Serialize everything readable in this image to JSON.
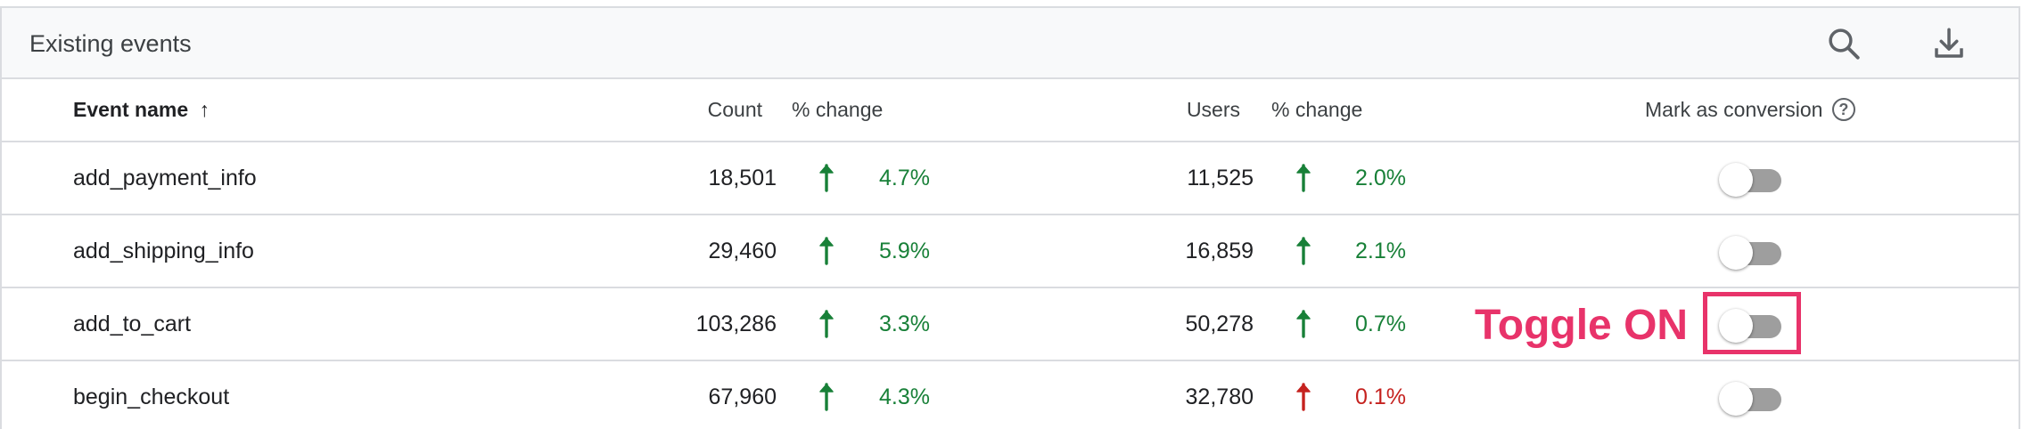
{
  "card": {
    "title": "Existing events"
  },
  "header_icons": {
    "search": "search-icon",
    "download": "download-icon"
  },
  "columns": {
    "event_name": "Event name",
    "event_name_sort": "↑",
    "count": "Count",
    "count_change": "% change",
    "users": "Users",
    "users_change": "% change",
    "mark_conversion": "Mark as conversion",
    "help_glyph": "?"
  },
  "rows": [
    {
      "name": "add_payment_info",
      "count": "18,501",
      "count_change": "4.7%",
      "count_dir": "up",
      "users": "11,525",
      "users_change": "2.0%",
      "users_dir": "up",
      "conversion": false
    },
    {
      "name": "add_shipping_info",
      "count": "29,460",
      "count_change": "5.9%",
      "count_dir": "up",
      "users": "16,859",
      "users_change": "2.1%",
      "users_dir": "up",
      "conversion": false
    },
    {
      "name": "add_to_cart",
      "count": "103,286",
      "count_change": "3.3%",
      "count_dir": "up",
      "users": "50,278",
      "users_change": "0.7%",
      "users_dir": "up",
      "conversion": false
    },
    {
      "name": "begin_checkout",
      "count": "67,960",
      "count_change": "4.3%",
      "count_dir": "up",
      "users": "32,780",
      "users_change": "0.1%",
      "users_dir": "up-red",
      "conversion": false
    }
  ],
  "annotation": {
    "label": "Toggle ON",
    "color": "#e8336a"
  },
  "colors": {
    "positive": "#188038",
    "negative": "#c5221f",
    "toggle_off": "#9e9e9e"
  }
}
